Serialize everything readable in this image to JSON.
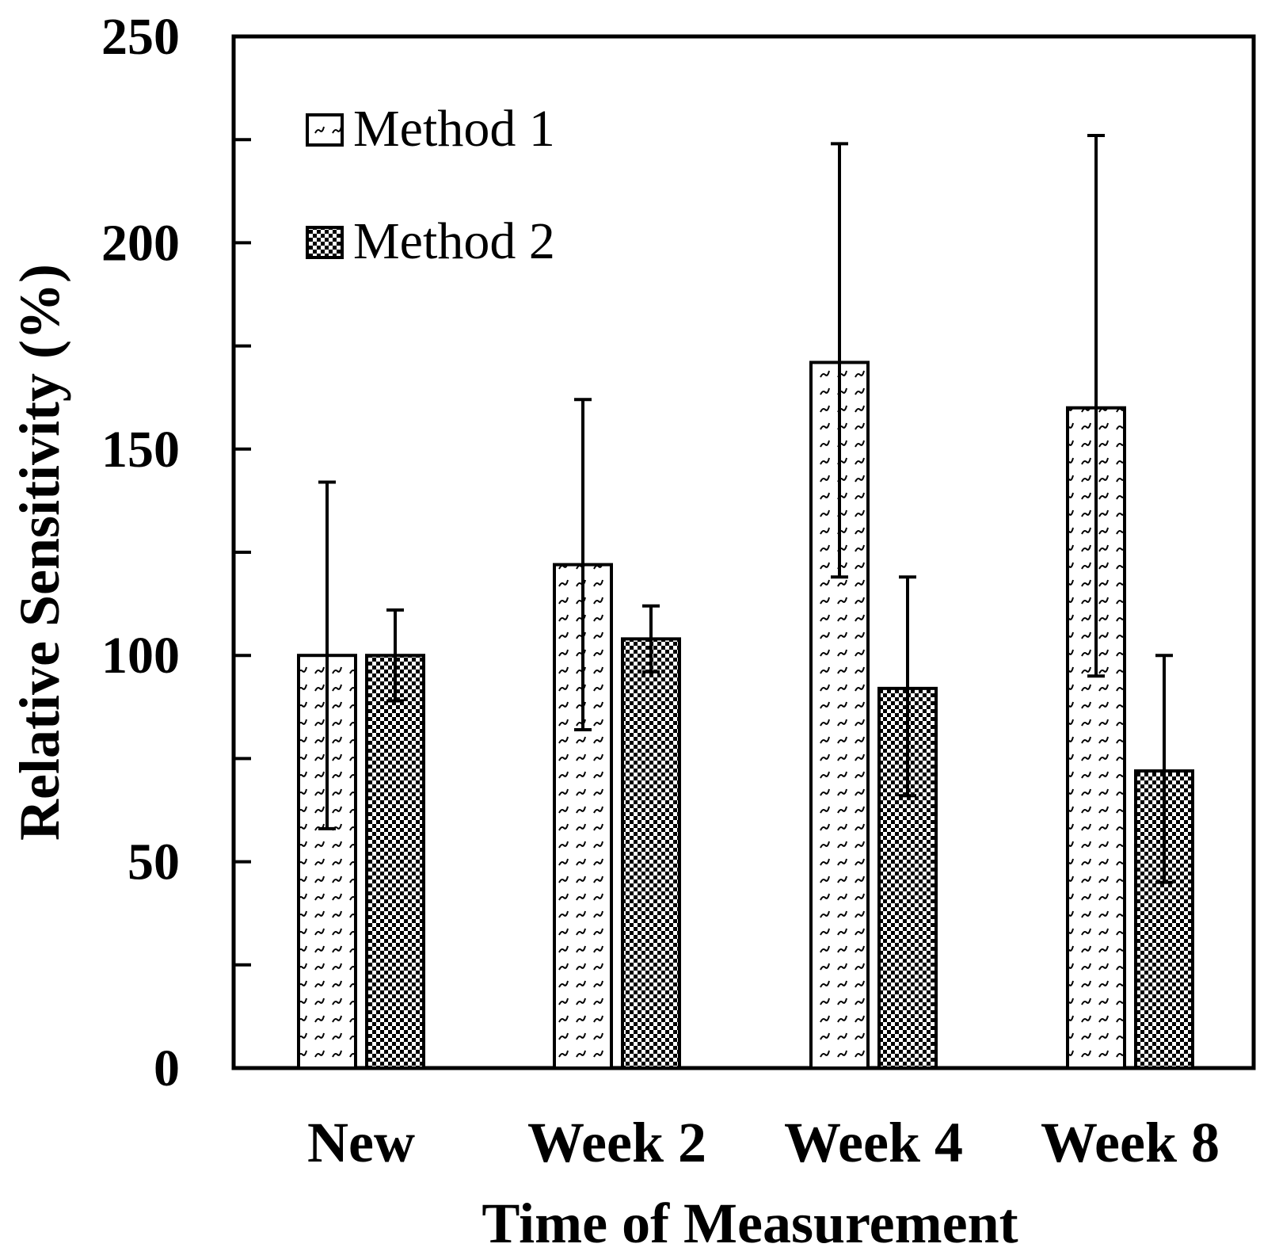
{
  "chart_data": {
    "type": "bar",
    "title": "",
    "xlabel": "Time of Measurement",
    "ylabel": "Relative Sensitivity (%)",
    "ylim": [
      0,
      250
    ],
    "yticks": [
      0,
      50,
      100,
      150,
      200,
      250
    ],
    "ytick_labels": [
      "0",
      "50",
      "100",
      "150",
      "200",
      "250"
    ],
    "minor_ytick_step": 25,
    "grid": false,
    "legend_position": "top-left",
    "categories": [
      "New",
      "Week 2",
      "Week 4",
      "Week 8"
    ],
    "series": [
      {
        "name": "Method 1",
        "pattern": "hatch-dashes",
        "values": [
          100,
          122,
          171,
          160
        ],
        "error_high": [
          142,
          162,
          224,
          226
        ],
        "error_low": [
          58,
          82,
          119,
          95
        ]
      },
      {
        "name": "Method 2",
        "pattern": "checker",
        "values": [
          100,
          104,
          92,
          72
        ],
        "error_high": [
          111,
          112,
          119,
          100
        ],
        "error_low": [
          89,
          96,
          66,
          45
        ]
      }
    ]
  }
}
